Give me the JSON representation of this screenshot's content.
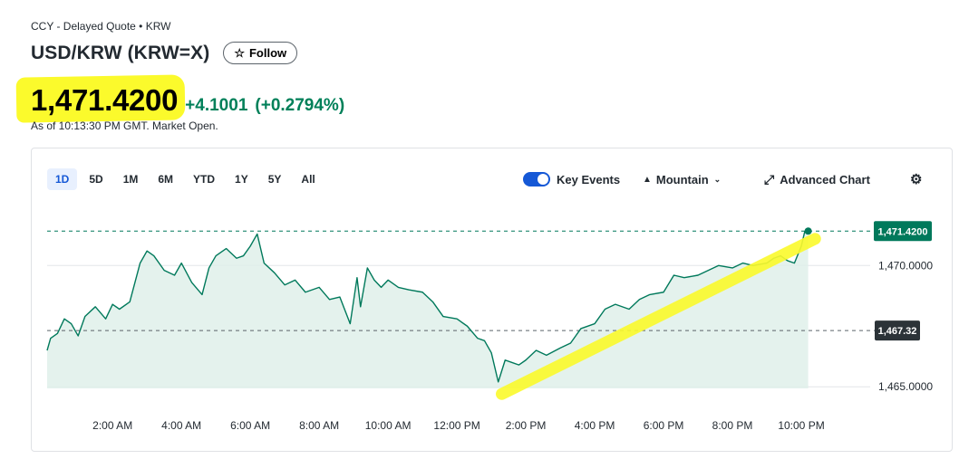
{
  "header": {
    "breadcrumb": "CCY - Delayed Quote • KRW",
    "title": "USD/KRW (KRW=X)",
    "follow_label": "Follow",
    "star_icon": "☆",
    "price": "1,471.4200",
    "change": "+4.1001",
    "change_pct": "(+0.2794%)",
    "as_of": "As of 10:13:30 PM GMT. Market Open.",
    "colors": {
      "up": "#008059",
      "highlight": "#fbfa2c"
    }
  },
  "toolbar": {
    "ranges": [
      "1D",
      "5D",
      "1M",
      "6M",
      "YTD",
      "1Y",
      "5Y",
      "All"
    ],
    "active_range": "1D",
    "key_events_label": "Key Events",
    "key_events_on": true,
    "chart_type_label": "Mountain",
    "advanced_label": "Advanced Chart",
    "icons": {
      "mountain": "mountain-icon",
      "chevron": "chevron-down-icon",
      "expand": "expand-icon",
      "settings": "gear-icon"
    }
  },
  "chart_data": {
    "type": "area",
    "title": "",
    "xlabel": "",
    "ylabel": "",
    "x_ticks": [
      "2:00 AM",
      "4:00 AM",
      "6:00 AM",
      "8:00 AM",
      "10:00 AM",
      "12:00 PM",
      "2:00 PM",
      "4:00 PM",
      "6:00 PM",
      "8:00 PM",
      "10:00 PM"
    ],
    "x_tick_hours": [
      2,
      4,
      6,
      8,
      10,
      12,
      14,
      16,
      18,
      20,
      22
    ],
    "x_range_hours": [
      0.1,
      24
    ],
    "y_ticks": [
      "1,470.0000",
      "1,465.0000"
    ],
    "y_tick_values": [
      1470.0,
      1465.0
    ],
    "ylim": [
      1464.0,
      1472.4
    ],
    "current_price_label": "1,471.4200",
    "current_price": 1471.42,
    "previous_close_label": "1,467.32",
    "previous_close": 1467.32,
    "grid": true,
    "line_color": "#00795b",
    "fill_color": "#dff0ea",
    "series": [
      {
        "x_hours": [
          0.1,
          0.2,
          0.4,
          0.6,
          0.8,
          1.0,
          1.2,
          1.5,
          1.8,
          2.0,
          2.2,
          2.5,
          2.8,
          3.0,
          3.2,
          3.5,
          3.8,
          4.0,
          4.3,
          4.6,
          4.8,
          5.0,
          5.3,
          5.6,
          5.8,
          6.0,
          6.2,
          6.4,
          6.7,
          7.0,
          7.3,
          7.6,
          8.0,
          8.3,
          8.6,
          8.9,
          9.1,
          9.2,
          9.4,
          9.6,
          9.8,
          10.0,
          10.3,
          10.6,
          11.0,
          11.3,
          11.6,
          12.0,
          12.3,
          12.6,
          12.8,
          13.0,
          13.2,
          13.4,
          13.6,
          13.8,
          14.0,
          14.3,
          14.6,
          15.0,
          15.3,
          15.6,
          16.0,
          16.3,
          16.6,
          17.0,
          17.3,
          17.6,
          18.0,
          18.3,
          18.6,
          19.0,
          19.3,
          19.6,
          20.0,
          20.3,
          20.6,
          21.0,
          21.2,
          21.4,
          21.6,
          21.8,
          22.0,
          22.1,
          22.2
        ],
        "y": [
          1466.5,
          1467.0,
          1467.2,
          1467.8,
          1467.6,
          1467.1,
          1467.9,
          1468.3,
          1467.8,
          1468.4,
          1468.2,
          1468.5,
          1470.1,
          1470.6,
          1470.4,
          1469.8,
          1469.6,
          1470.1,
          1469.3,
          1468.8,
          1469.9,
          1470.4,
          1470.7,
          1470.3,
          1470.4,
          1470.8,
          1471.3,
          1470.1,
          1469.7,
          1469.2,
          1469.4,
          1468.9,
          1469.1,
          1468.6,
          1468.7,
          1467.6,
          1469.5,
          1468.3,
          1469.9,
          1469.4,
          1469.1,
          1469.4,
          1469.1,
          1469.0,
          1468.9,
          1468.5,
          1467.9,
          1467.8,
          1467.5,
          1467.0,
          1466.9,
          1466.4,
          1465.2,
          1466.1,
          1466.0,
          1465.9,
          1466.1,
          1466.5,
          1466.3,
          1466.6,
          1466.8,
          1467.4,
          1467.6,
          1468.2,
          1468.4,
          1468.2,
          1468.6,
          1468.8,
          1468.9,
          1469.6,
          1469.5,
          1469.6,
          1469.8,
          1470.0,
          1469.9,
          1470.1,
          1470.0,
          1470.1,
          1470.3,
          1470.4,
          1470.2,
          1470.1,
          1470.8,
          1471.4,
          1471.42
        ]
      }
    ]
  }
}
